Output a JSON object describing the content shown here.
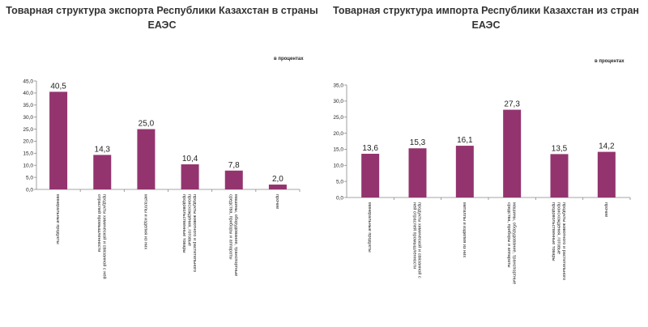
{
  "chart_data": [
    {
      "type": "bar",
      "title": "Товарная структура экспорта Республики Казахстан в страны ЕАЭС",
      "title_lines": [
        "Товарная структура экспорта Республики Казахстан в страны",
        "ЕАЭС"
      ],
      "units": "в процентах",
      "categories": [
        "минеральные продукты",
        "продукты химической и связанной с ней отраслей промышленности",
        "металлы и изделия из них",
        "продукты животного и растительного происхождения, готовые продовольственные товары",
        "машины, оборудование, транспортные средства, приборы и аппараты",
        "прочие"
      ],
      "category_lines": [
        [
          "минеральные продукты"
        ],
        [
          "продукты химической и связанной с ней",
          "отраслей промышленности"
        ],
        [
          "металлы и изделия из них"
        ],
        [
          "продукты животного и растительного",
          "происхождения, готовые",
          "продовольственные товары"
        ],
        [
          "машины, оборудование, транспортные",
          "средства, приборы и аппараты"
        ],
        [
          "прочие"
        ]
      ],
      "values": [
        40.5,
        14.3,
        25.0,
        10.4,
        7.8,
        2.0
      ],
      "value_labels": [
        "40,5",
        "14,3",
        "25,0",
        "10,4",
        "7,8",
        "2,0"
      ],
      "ylim": [
        0,
        45
      ],
      "yticks": [
        "0,0",
        "5,0",
        "10,0",
        "15,0",
        "20,0",
        "25,0",
        "30,0",
        "35,0",
        "40,0",
        "45,0"
      ],
      "color": "#93346f"
    },
    {
      "type": "bar",
      "title": "Товарная структура импорта Республики Казахстан из стран ЕАЭС",
      "title_lines": [
        "Товарная структура импорта Республики Казахстан из стран",
        "ЕАЭС"
      ],
      "units": "в процентах",
      "categories": [
        "минеральные продукты",
        "продукты химической и связанной с ней отраслей промышленности",
        "металлы и изделия из них",
        "машины, оборудование, транспортные средства, приборы и аппараты",
        "продукты животного и растительного происхождения, готовые продовольственные товары",
        "прочие"
      ],
      "category_lines": [
        [
          "минеральные продукты"
        ],
        [
          "продукты химической и связанной с",
          "ней отраслей промышленности"
        ],
        [
          "металлы и изделия из них"
        ],
        [
          "машины, оборудование, транспортные",
          "средства, приборы и аппараты"
        ],
        [
          "продукты животного и растительного",
          "происхождения, готовые",
          "продовольственные товары"
        ],
        [
          "прочие"
        ]
      ],
      "values": [
        13.6,
        15.3,
        16.1,
        27.3,
        13.5,
        14.2
      ],
      "value_labels": [
        "13,6",
        "15,3",
        "16,1",
        "27,3",
        "13,5",
        "14,2"
      ],
      "ylim": [
        0,
        35
      ],
      "yticks": [
        "0,0",
        "5,0",
        "10,0",
        "15,0",
        "20,0",
        "25,0",
        "30,0",
        "35,0"
      ],
      "color": "#93346f"
    }
  ]
}
